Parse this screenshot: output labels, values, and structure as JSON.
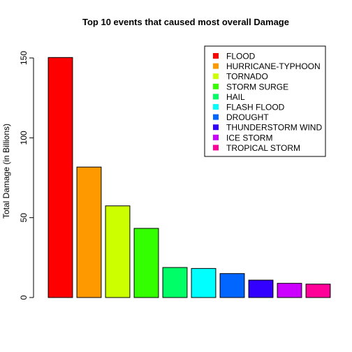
{
  "chart_data": {
    "type": "bar",
    "title": "Top 10 events that caused most overall Damage",
    "xlabel": "",
    "ylabel": "Total Damage (in Billions)",
    "ylim": [
      0,
      160
    ],
    "yticks": [
      0,
      50,
      100,
      150
    ],
    "grid": false,
    "legend_position": "top-right",
    "categories": [
      "FLOOD",
      "HURRICANE-TYPHOON",
      "TORNADO",
      "STORM SURGE",
      "HAIL",
      "FLASH FLOOD",
      "DROUGHT",
      "THUNDERSTORM WIND",
      "ICE STORM",
      "TROPICAL STORM"
    ],
    "values": [
      150.3,
      81.7,
      57.4,
      43.3,
      18.8,
      18.2,
      15.0,
      10.9,
      8.9,
      8.4
    ],
    "colors": [
      "#FF0000",
      "#FF9900",
      "#CCFF00",
      "#33FF00",
      "#00FF66",
      "#00FFFF",
      "#0066FF",
      "#3300FF",
      "#CC00FF",
      "#FF0099"
    ]
  }
}
